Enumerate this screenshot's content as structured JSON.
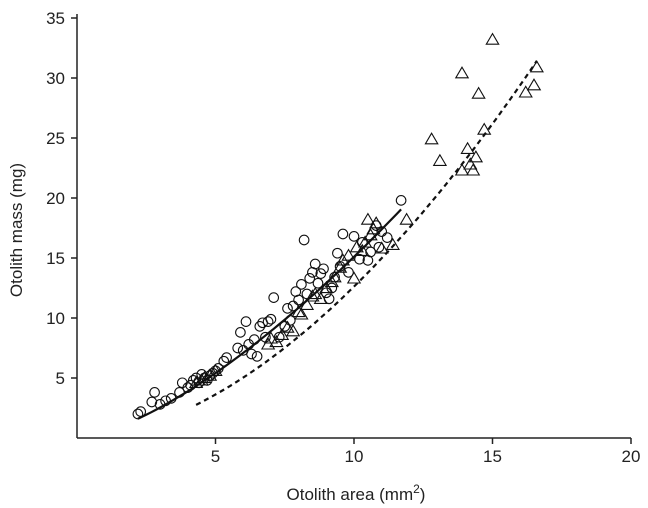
{
  "chart_data": {
    "type": "scatter",
    "xlabel": "Otolith area (mm",
    "xlabel_superscript": "2",
    "xlabel_suffix": ")",
    "ylabel": "Otolith mass (mg)",
    "xlim": [
      0,
      20
    ],
    "ylim": [
      0,
      35
    ],
    "xticks": [
      5,
      10,
      15,
      20
    ],
    "yticks": [
      5,
      10,
      15,
      20,
      25,
      30,
      35
    ],
    "series": [
      {
        "marker": "circle",
        "points": [
          [
            2.2,
            2.0
          ],
          [
            2.3,
            2.2
          ],
          [
            2.7,
            3.0
          ],
          [
            2.8,
            3.8
          ],
          [
            3.0,
            2.8
          ],
          [
            3.2,
            3.1
          ],
          [
            3.4,
            3.3
          ],
          [
            3.7,
            3.8
          ],
          [
            3.8,
            4.6
          ],
          [
            4.0,
            4.2
          ],
          [
            4.1,
            4.4
          ],
          [
            4.2,
            4.8
          ],
          [
            4.3,
            5.0
          ],
          [
            4.4,
            4.6
          ],
          [
            4.5,
            5.3
          ],
          [
            4.6,
            5.0
          ],
          [
            4.7,
            4.8
          ],
          [
            4.8,
            5.2
          ],
          [
            4.9,
            5.4
          ],
          [
            5.0,
            5.6
          ],
          [
            5.1,
            5.8
          ],
          [
            5.3,
            6.4
          ],
          [
            5.4,
            6.7
          ],
          [
            5.8,
            7.5
          ],
          [
            5.9,
            8.8
          ],
          [
            6.0,
            7.3
          ],
          [
            6.1,
            9.7
          ],
          [
            6.2,
            7.8
          ],
          [
            6.3,
            7.0
          ],
          [
            6.4,
            8.2
          ],
          [
            6.5,
            6.8
          ],
          [
            6.6,
            9.3
          ],
          [
            6.7,
            9.6
          ],
          [
            6.8,
            8.4
          ],
          [
            6.9,
            9.7
          ],
          [
            7.0,
            9.9
          ],
          [
            7.1,
            11.7
          ],
          [
            7.3,
            8.4
          ],
          [
            7.5,
            9.3
          ],
          [
            7.6,
            10.8
          ],
          [
            7.7,
            9.8
          ],
          [
            7.8,
            11.0
          ],
          [
            7.9,
            12.2
          ],
          [
            8.0,
            11.5
          ],
          [
            8.1,
            12.8
          ],
          [
            8.2,
            16.5
          ],
          [
            8.3,
            12.0
          ],
          [
            8.4,
            13.3
          ],
          [
            8.5,
            13.8
          ],
          [
            8.6,
            14.5
          ],
          [
            8.7,
            12.9
          ],
          [
            8.8,
            13.7
          ],
          [
            8.9,
            14.1
          ],
          [
            9.0,
            12.1
          ],
          [
            9.1,
            11.6
          ],
          [
            9.2,
            12.5
          ],
          [
            9.3,
            13.4
          ],
          [
            9.4,
            15.4
          ],
          [
            9.5,
            14.3
          ],
          [
            9.6,
            17.0
          ],
          [
            9.8,
            13.8
          ],
          [
            10.0,
            16.8
          ],
          [
            10.2,
            14.9
          ],
          [
            10.3,
            16.3
          ],
          [
            10.5,
            14.8
          ],
          [
            10.6,
            15.5
          ],
          [
            10.8,
            17.7
          ],
          [
            10.9,
            15.9
          ],
          [
            11.0,
            17.2
          ],
          [
            11.2,
            16.7
          ],
          [
            11.7,
            19.8
          ]
        ]
      },
      {
        "marker": "triangle",
        "points": [
          [
            4.3,
            4.6
          ],
          [
            4.5,
            4.8
          ],
          [
            4.6,
            5.0
          ],
          [
            4.8,
            5.2
          ],
          [
            5.0,
            5.6
          ],
          [
            6.9,
            7.8
          ],
          [
            7.0,
            8.3
          ],
          [
            7.2,
            8.0
          ],
          [
            7.4,
            8.6
          ],
          [
            7.6,
            9.2
          ],
          [
            7.8,
            8.9
          ],
          [
            8.0,
            10.5
          ],
          [
            8.1,
            10.3
          ],
          [
            8.3,
            11.1
          ],
          [
            8.5,
            11.8
          ],
          [
            8.6,
            12.0
          ],
          [
            8.8,
            11.6
          ],
          [
            9.0,
            12.5
          ],
          [
            9.2,
            13.0
          ],
          [
            9.3,
            13.4
          ],
          [
            9.5,
            14.2
          ],
          [
            9.6,
            14.8
          ],
          [
            9.8,
            15.2
          ],
          [
            10.0,
            13.3
          ],
          [
            10.1,
            15.9
          ],
          [
            10.3,
            15.6
          ],
          [
            10.4,
            16.3
          ],
          [
            10.5,
            18.2
          ],
          [
            10.6,
            16.9
          ],
          [
            10.7,
            17.4
          ],
          [
            10.8,
            17.9
          ],
          [
            11.0,
            15.8
          ],
          [
            11.4,
            16.1
          ],
          [
            11.9,
            18.2
          ],
          [
            12.8,
            24.9
          ],
          [
            13.1,
            23.1
          ],
          [
            13.9,
            30.4
          ],
          [
            13.9,
            22.3
          ],
          [
            14.1,
            24.1
          ],
          [
            14.2,
            22.8
          ],
          [
            14.3,
            22.3
          ],
          [
            14.4,
            23.4
          ],
          [
            14.5,
            28.7
          ],
          [
            14.7,
            25.7
          ],
          [
            15.0,
            33.2
          ],
          [
            16.2,
            28.8
          ],
          [
            16.5,
            29.4
          ],
          [
            16.6,
            30.9
          ]
        ]
      }
    ],
    "fits": [
      {
        "style": "solid",
        "x_start": 2.2,
        "x_end": 11.7,
        "a": 0.5,
        "b": 1.48
      },
      {
        "style": "dashed",
        "x_start": 4.3,
        "x_end": 16.6,
        "a": 0.2,
        "b": 1.8
      }
    ]
  }
}
